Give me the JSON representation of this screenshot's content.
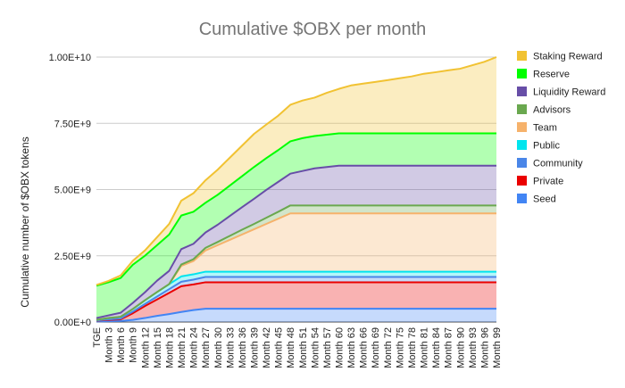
{
  "chart_data": {
    "type": "area",
    "stacked": true,
    "title": "Cumulative $OBX per month",
    "xlabel": "",
    "ylabel": "Cumulative number of $OBX tokens",
    "ylim": [
      0,
      10000000000
    ],
    "yticks": [
      {
        "value": 0,
        "label": "0.00E+0"
      },
      {
        "value": 2500000000,
        "label": "2.50E+9"
      },
      {
        "value": 5000000000,
        "label": "5.00E+9"
      },
      {
        "value": 7500000000,
        "label": "7.50E+9"
      },
      {
        "value": 10000000000,
        "label": "1.00E+10"
      }
    ],
    "grid": true,
    "legend_position": "right",
    "categories": [
      "TGE",
      "Month 3",
      "Month 6",
      "Month 9",
      "Month 12",
      "Month 15",
      "Month 18",
      "Month 21",
      "Month 24",
      "Month 27",
      "Month 30",
      "Month 33",
      "Month 36",
      "Month 39",
      "Month 42",
      "Month 45",
      "Month 48",
      "Month 51",
      "Month 54",
      "Month 57",
      "Month 60",
      "Month 63",
      "Month 66",
      "Month 69",
      "Month 72",
      "Month 75",
      "Month 78",
      "Month 81",
      "Month 84",
      "Month 87",
      "Month 90",
      "Month 93",
      "Month 96",
      "Month 99"
    ],
    "series": [
      {
        "name": "Seed",
        "color": "#4285f4",
        "values": [
          20000000,
          30000000,
          40000000,
          80000000,
          150000000,
          230000000,
          300000000,
          380000000,
          450000000,
          500000000,
          500000000,
          500000000,
          500000000,
          500000000,
          500000000,
          500000000,
          500000000,
          500000000,
          500000000,
          500000000,
          500000000,
          500000000,
          500000000,
          500000000,
          500000000,
          500000000,
          500000000,
          500000000,
          500000000,
          500000000,
          500000000,
          500000000,
          500000000,
          500000000
        ]
      },
      {
        "name": "Private",
        "color": "#ea0000",
        "values": [
          30000000,
          50000000,
          60000000,
          250000000,
          450000000,
          620000000,
          800000000,
          970000000,
          970000000,
          1000000000,
          1000000000,
          1000000000,
          1000000000,
          1000000000,
          1000000000,
          1000000000,
          1000000000,
          1000000000,
          1000000000,
          1000000000,
          1000000000,
          1000000000,
          1000000000,
          1000000000,
          1000000000,
          1000000000,
          1000000000,
          1000000000,
          1000000000,
          1000000000,
          1000000000,
          1000000000,
          1000000000,
          1000000000
        ]
      },
      {
        "name": "Community",
        "color": "#4a86e8",
        "values": [
          10000000,
          20000000,
          30000000,
          60000000,
          80000000,
          110000000,
          140000000,
          170000000,
          180000000,
          200000000,
          200000000,
          200000000,
          200000000,
          200000000,
          200000000,
          200000000,
          200000000,
          200000000,
          200000000,
          200000000,
          200000000,
          200000000,
          200000000,
          200000000,
          200000000,
          200000000,
          200000000,
          200000000,
          200000000,
          200000000,
          200000000,
          200000000,
          200000000,
          200000000
        ]
      },
      {
        "name": "Public",
        "color": "#00e5ee",
        "values": [
          20000000,
          50000000,
          70000000,
          100000000,
          140000000,
          170000000,
          190000000,
          200000000,
          200000000,
          200000000,
          200000000,
          200000000,
          200000000,
          200000000,
          200000000,
          200000000,
          200000000,
          200000000,
          200000000,
          200000000,
          200000000,
          200000000,
          200000000,
          200000000,
          200000000,
          200000000,
          200000000,
          200000000,
          200000000,
          200000000,
          200000000,
          200000000,
          200000000,
          200000000
        ]
      },
      {
        "name": "Team",
        "color": "#f6b26b",
        "values": [
          0,
          0,
          0,
          0,
          0,
          0,
          0,
          400000000,
          500000000,
          800000000,
          1000000000,
          1200000000,
          1400000000,
          1600000000,
          1800000000,
          2000000000,
          2200000000,
          2200000000,
          2200000000,
          2200000000,
          2200000000,
          2200000000,
          2200000000,
          2200000000,
          2200000000,
          2200000000,
          2200000000,
          2200000000,
          2200000000,
          2200000000,
          2200000000,
          2200000000,
          2200000000,
          2200000000
        ]
      },
      {
        "name": "Advisors",
        "color": "#6aa84f",
        "values": [
          0,
          0,
          0,
          0,
          0,
          0,
          0,
          50000000,
          70000000,
          100000000,
          120000000,
          150000000,
          180000000,
          200000000,
          230000000,
          260000000,
          300000000,
          300000000,
          300000000,
          300000000,
          300000000,
          300000000,
          300000000,
          300000000,
          300000000,
          300000000,
          300000000,
          300000000,
          300000000,
          300000000,
          300000000,
          300000000,
          300000000,
          300000000
        ]
      },
      {
        "name": "Liquidity Reward",
        "color": "#674ea7",
        "values": [
          70000000,
          100000000,
          150000000,
          230000000,
          300000000,
          430000000,
          500000000,
          580000000,
          580000000,
          580000000,
          650000000,
          750000000,
          850000000,
          950000000,
          1050000000,
          1130000000,
          1200000000,
          1300000000,
          1400000000,
          1450000000,
          1500000000,
          1500000000,
          1500000000,
          1500000000,
          1500000000,
          1500000000,
          1500000000,
          1500000000,
          1500000000,
          1500000000,
          1500000000,
          1500000000,
          1500000000,
          1500000000
        ]
      },
      {
        "name": "Reserve",
        "color": "#00ff00",
        "values": [
          1220000000,
          1250000000,
          1310000000,
          1440000000,
          1380000000,
          1340000000,
          1370000000,
          1270000000,
          1210000000,
          1120000000,
          1130000000,
          1150000000,
          1170000000,
          1200000000,
          1200000000,
          1200000000,
          1220000000,
          1240000000,
          1220000000,
          1220000000,
          1220000000,
          1220000000,
          1220000000,
          1220000000,
          1220000000,
          1220000000,
          1220000000,
          1220000000,
          1220000000,
          1220000000,
          1220000000,
          1220000000,
          1220000000,
          1220000000
        ]
      },
      {
        "name": "Staking Reward",
        "color": "#f1c232",
        "values": [
          30000000,
          50000000,
          100000000,
          150000000,
          200000000,
          300000000,
          400000000,
          560000000,
          700000000,
          850000000,
          950000000,
          1050000000,
          1150000000,
          1250000000,
          1270000000,
          1300000000,
          1380000000,
          1420000000,
          1450000000,
          1580000000,
          1680000000,
          1810000000,
          1880000000,
          1940000000,
          2010000000,
          2080000000,
          2150000000,
          2250000000,
          2310000000,
          2380000000,
          2440000000,
          2570000000,
          2700000000,
          2880000000
        ]
      }
    ]
  }
}
